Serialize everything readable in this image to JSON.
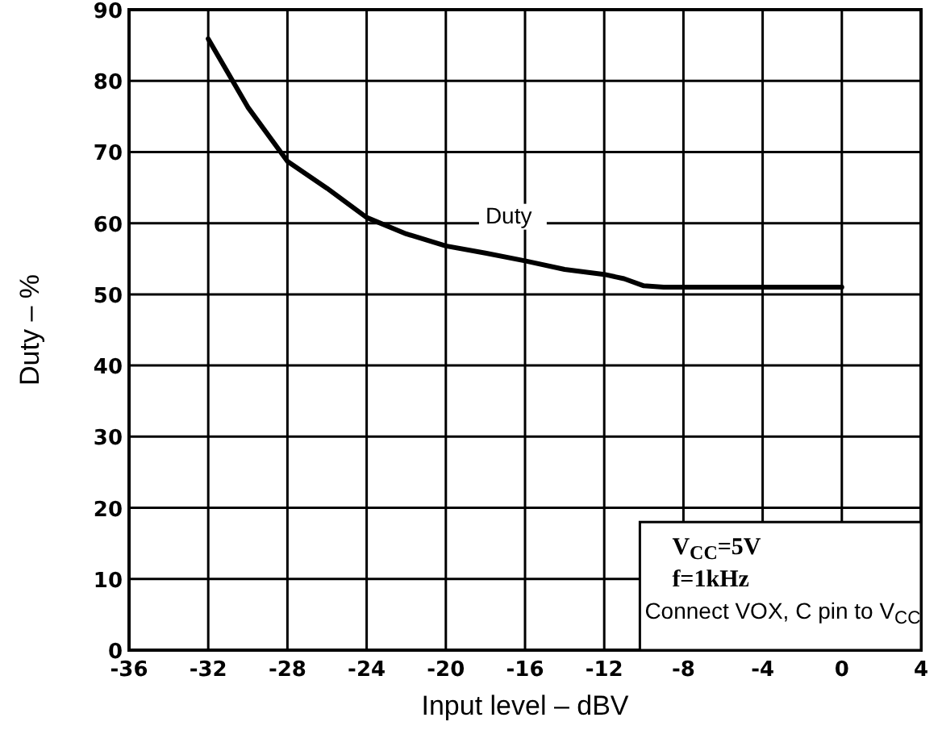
{
  "chart_data": {
    "type": "line",
    "xlabel": "Input level – dBV",
    "ylabel": "Duty – %",
    "xlim": [
      -36,
      4
    ],
    "xticks": [
      -36,
      -32,
      -28,
      -24,
      -20,
      -16,
      -12,
      -8,
      -4,
      0,
      4
    ],
    "ylim": [
      0,
      90
    ],
    "yticks": [
      0,
      10,
      20,
      30,
      40,
      50,
      60,
      70,
      80,
      90
    ],
    "grid": true,
    "line_style": "solid",
    "marker": "none",
    "series": [
      {
        "name": "Duty",
        "color": "#000000",
        "x": [
          -32,
          -30,
          -28,
          -26,
          -24,
          -22,
          -20,
          -18,
          -16,
          -14,
          -12,
          -11,
          -10,
          -9,
          -4,
          0
        ],
        "values": [
          85.9,
          76.3,
          68.7,
          64.9,
          60.8,
          58.5,
          56.8,
          55.8,
          54.7,
          53.5,
          52.8,
          52.2,
          51.2,
          51,
          51,
          51
        ]
      }
    ],
    "annotations": [
      "V$_{CC}$=5V",
      "f=1kHz",
      "Connect VOX, C pin to V$_{CC}$"
    ]
  }
}
